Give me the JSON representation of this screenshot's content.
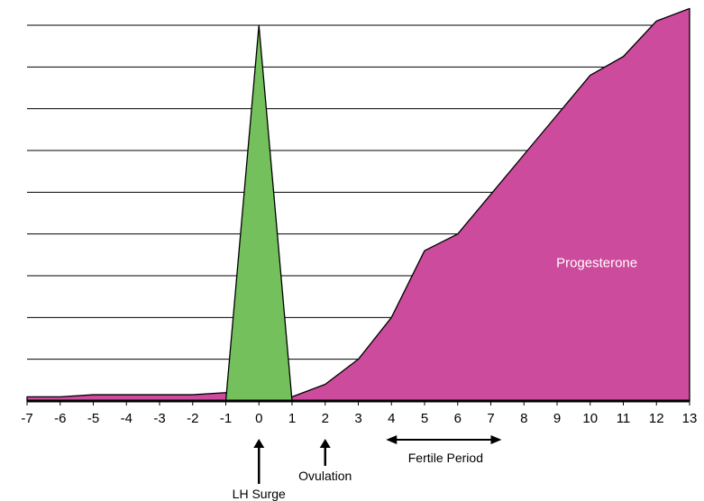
{
  "chart_data": {
    "type": "area",
    "x": [
      -7,
      -6,
      -5,
      -4,
      -3,
      -2,
      -1,
      0,
      1,
      2,
      3,
      4,
      5,
      6,
      7,
      8,
      9,
      10,
      11,
      12,
      13
    ],
    "xticks": [
      "-7",
      "-6",
      "-5",
      "-4",
      "-3",
      "-2",
      "-1",
      "0",
      "1",
      "2",
      "3",
      "4",
      "5",
      "6",
      "7",
      "8",
      "9",
      "10",
      "11",
      "12",
      "13"
    ],
    "xlim": [
      -7,
      13
    ],
    "ylim": [
      0,
      9
    ],
    "grid": true,
    "series": [
      {
        "name": "Progesterone",
        "color": "#cc4b9c",
        "x": [
          -7,
          -6,
          -5,
          -4,
          -3,
          -2,
          -1,
          1,
          2,
          3,
          4,
          5,
          6,
          7,
          8,
          9,
          10,
          11,
          12,
          13
        ],
        "values": [
          0.1,
          0.1,
          0.15,
          0.15,
          0.15,
          0.15,
          0.2,
          0.1,
          0.4,
          1.0,
          2.0,
          3.6,
          4.0,
          4.95,
          5.9,
          6.85,
          7.8,
          8.25,
          9.1,
          9.4
        ]
      },
      {
        "name": "",
        "color": "#74c05c",
        "x": [
          -1,
          0,
          1
        ],
        "values": [
          0,
          9.0,
          0
        ]
      }
    ],
    "annotations": [
      {
        "label": "LH Surge",
        "x": 0,
        "type": "arrow-up"
      },
      {
        "label": "Ovulation",
        "x": 2,
        "type": "arrow-up"
      },
      {
        "label": "Fertile Period",
        "x_start": 4,
        "x_end": 7,
        "type": "double-arrow"
      }
    ]
  }
}
